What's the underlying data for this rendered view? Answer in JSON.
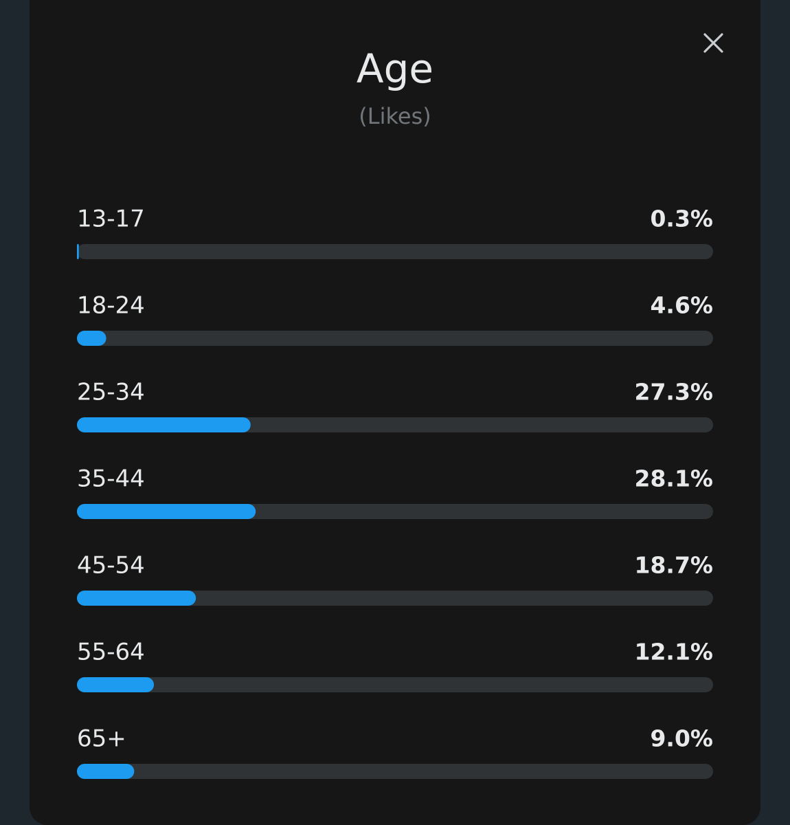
{
  "chart_data": {
    "type": "bar",
    "orientation": "horizontal",
    "title": "Age",
    "subtitle": "(Likes)",
    "categories": [
      "13-17",
      "18-24",
      "25-34",
      "35-44",
      "45-54",
      "55-64",
      "65+"
    ],
    "values": [
      0.3,
      4.6,
      27.3,
      28.1,
      18.7,
      12.1,
      9.0
    ],
    "value_labels": [
      "0.3%",
      "4.6%",
      "27.3%",
      "28.1%",
      "18.7%",
      "12.1%",
      "9.0%"
    ],
    "color": "#1d9bf0",
    "xlim": [
      0,
      100
    ]
  }
}
